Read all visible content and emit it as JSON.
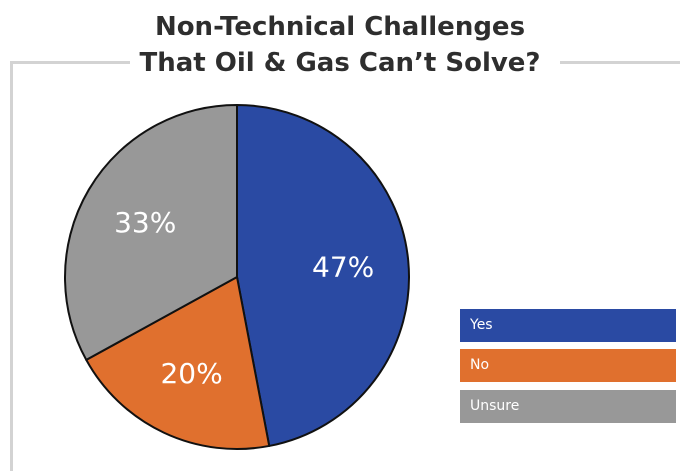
{
  "chart_data": {
    "type": "pie",
    "title_lines": [
      "Non-Technical Challenges",
      "That Oil & Gas Can’t Solve?"
    ],
    "categories": [
      "Yes",
      "No",
      "Unsure"
    ],
    "values": [
      47,
      20,
      33
    ],
    "value_labels": [
      "47%",
      "20%",
      "33%"
    ],
    "colors": [
      "#2a4aa3",
      "#e0702e",
      "#989898"
    ],
    "legend": {
      "placement": "right",
      "items": [
        "Yes",
        "No",
        "Unsure"
      ]
    }
  }
}
